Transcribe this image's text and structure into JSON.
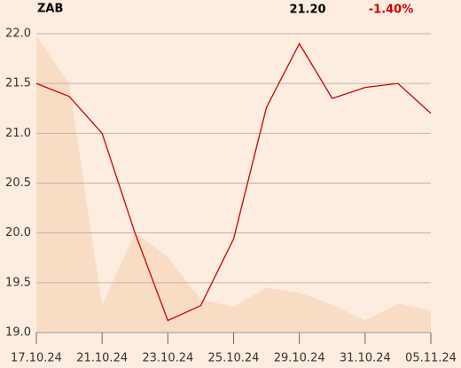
{
  "header": {
    "symbol": "ZAB",
    "price": "21.20",
    "change": "-1.40%"
  },
  "chart_data": {
    "type": "line",
    "categories": [
      "17.10.24",
      null,
      "21.10.24",
      null,
      "23.10.24",
      null,
      "25.10.24",
      null,
      "29.10.24",
      null,
      "31.10.24",
      null,
      "05.11.24"
    ],
    "series": [
      {
        "color": "#f9dcc4",
        "fill": true,
        "values": [
          21.98,
          21.49,
          19.27,
          20.0,
          19.76,
          19.33,
          19.26,
          19.45,
          19.4,
          19.28,
          19.12,
          19.29,
          19.22
        ]
      },
      {
        "color": "#cc0000",
        "values": [
          21.5,
          21.37,
          21.0,
          20.0,
          19.12,
          19.27,
          19.94,
          21.26,
          21.9,
          21.35,
          21.46,
          21.5,
          21.2
        ]
      }
    ],
    "ylim": [
      19,
      22
    ],
    "yticks": [
      {
        "value": 19,
        "label": "19.0"
      },
      19.5,
      {
        "value": 20,
        "label": "20.0"
      },
      20.5,
      {
        "value": 21,
        "label": "21.0"
      },
      21.5,
      {
        "value": 22,
        "label": "22.0"
      }
    ],
    "grid": true
  }
}
